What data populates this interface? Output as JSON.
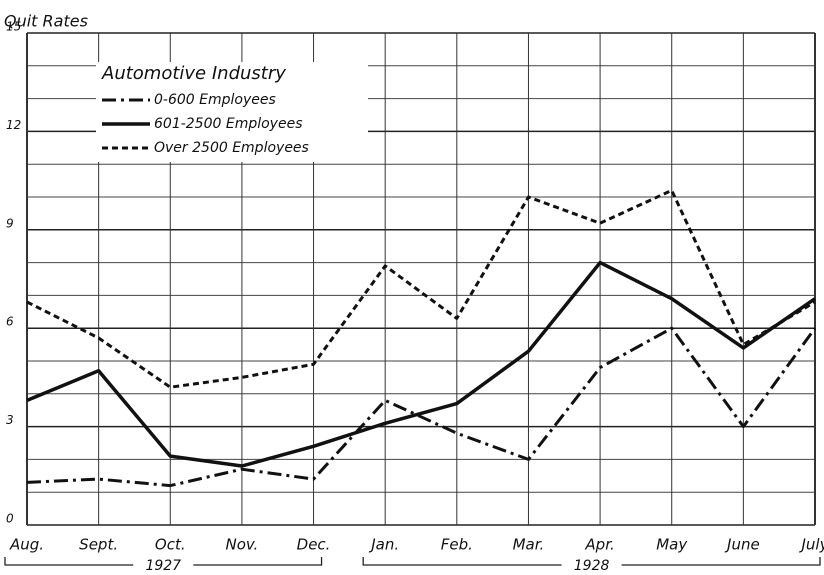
{
  "chart_data": {
    "type": "line",
    "y_axis_label": "Quit Rates",
    "legend_title": "Automotive Industry",
    "categories": [
      "Aug.",
      "Sept.",
      "Oct.",
      "Nov.",
      "Dec.",
      "Jan.",
      "Feb.",
      "Mar.",
      "Apr.",
      "May",
      "June",
      "July"
    ],
    "year_labels": [
      "1927",
      "1928"
    ],
    "series": [
      {
        "name": "0-600 Employees",
        "color": "#111111",
        "dash": "14 5 3 5",
        "values": [
          1.3,
          1.4,
          1.2,
          1.7,
          1.4,
          3.8,
          2.8,
          2.0,
          4.8,
          6.0,
          3.0,
          6.0
        ]
      },
      {
        "name": "601-2500 Employees",
        "color": "#111111",
        "dash": "none",
        "values": [
          3.8,
          4.7,
          2.1,
          1.8,
          2.4,
          3.1,
          3.7,
          5.3,
          8.0,
          6.9,
          5.4,
          6.9
        ]
      },
      {
        "name": "Over 2500 Employees",
        "color": "#111111",
        "dash": "6 4",
        "values": [
          6.8,
          5.7,
          4.2,
          4.5,
          4.9,
          7.9,
          6.3,
          10.0,
          9.2,
          10.2,
          5.5,
          6.8
        ]
      }
    ],
    "ylim": [
      0,
      15
    ],
    "yticks": [
      0,
      3,
      6,
      9,
      12,
      15
    ],
    "yminorticks": [
      1,
      2,
      4,
      5,
      7,
      8,
      10,
      11,
      13,
      14
    ],
    "grid": true
  }
}
